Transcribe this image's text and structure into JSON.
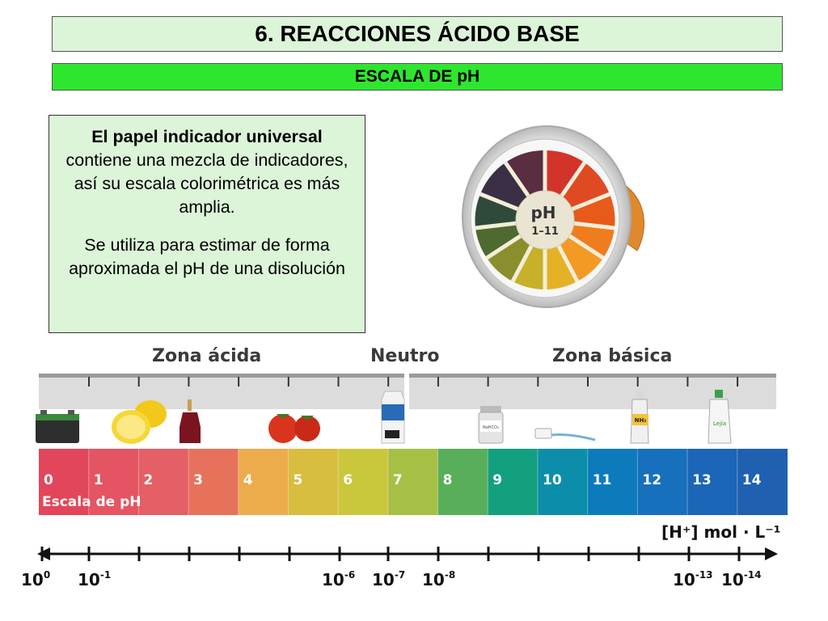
{
  "title": "6. REACCIONES ÁCIDO BASE",
  "subtitle": "ESCALA DE pH",
  "info": {
    "bold_lead": "El papel indicador universal",
    "para1_rest": "contiene una mezcla de indicadores, así su escala colorimétrica es más amplia.",
    "para2": "Se utiliza para estimar de forma aproximada el pH de una disolución"
  },
  "roll": {
    "label_top": "pH",
    "label_bottom": "1–11"
  },
  "zones": {
    "acid": "Zona ácida",
    "neutral": "Neutro",
    "basic": "Zona básica"
  },
  "scale": {
    "label": "Escala de pH",
    "values": [
      "0",
      "1",
      "2",
      "3",
      "4",
      "5",
      "6",
      "7",
      "8",
      "9",
      "10",
      "11",
      "12",
      "13",
      "14"
    ],
    "colors": [
      "#e2465a",
      "#e45462",
      "#e45f66",
      "#e6725c",
      "#edac4c",
      "#d8bd3e",
      "#cbc73c",
      "#a6c045",
      "#59ae5a",
      "#13a07f",
      "#0c8eab",
      "#0c7bbb",
      "#1770bb",
      "#1b66b6",
      "#1f60b0"
    ]
  },
  "items": {
    "jar_label": "NaHCO₃",
    "bottle_label": "NH₃",
    "lejia_label": "Lejía"
  },
  "concentration": {
    "label": "[H⁺] mol · L⁻¹",
    "ticks": [
      {
        "base": "10",
        "exp": "0"
      },
      {
        "base": "10",
        "exp": "-1"
      },
      {
        "base": "10",
        "exp": "-6"
      },
      {
        "base": "10",
        "exp": "-7"
      },
      {
        "base": "10",
        "exp": "-8"
      },
      {
        "base": "10",
        "exp": "-13"
      },
      {
        "base": "10",
        "exp": "-14"
      }
    ]
  }
}
